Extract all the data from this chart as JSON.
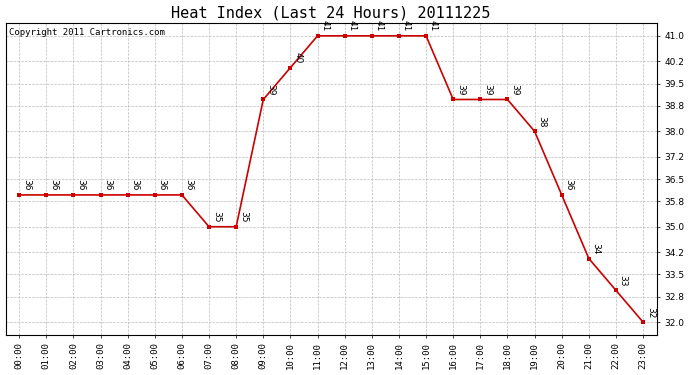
{
  "title": "Heat Index (Last 24 Hours) 20111225",
  "copyright": "Copyright 2011 Cartronics.com",
  "x_labels": [
    "00:00",
    "01:00",
    "02:00",
    "03:00",
    "04:00",
    "05:00",
    "06:00",
    "07:00",
    "08:00",
    "09:00",
    "10:00",
    "11:00",
    "12:00",
    "13:00",
    "14:00",
    "15:00",
    "16:00",
    "17:00",
    "18:00",
    "19:00",
    "20:00",
    "21:00",
    "22:00",
    "23:00"
  ],
  "x_values": [
    0,
    1,
    2,
    3,
    4,
    5,
    6,
    7,
    8,
    9,
    10,
    11,
    12,
    13,
    14,
    15,
    16,
    17,
    18,
    19,
    20,
    21,
    22,
    23
  ],
  "y_values": [
    36,
    36,
    36,
    36,
    36,
    36,
    36,
    35,
    35,
    39,
    40,
    41,
    41,
    41,
    41,
    41,
    39,
    39,
    39,
    38,
    36,
    34,
    33,
    32
  ],
  "ylim_min": 31.6,
  "ylim_max": 41.4,
  "y_ticks": [
    32.0,
    32.8,
    33.5,
    34.2,
    35.0,
    35.8,
    36.5,
    37.2,
    38.0,
    38.8,
    39.5,
    40.2,
    41.0
  ],
  "line_color": "#cc0000",
  "marker_color": "#cc0000",
  "bg_color": "#ffffff",
  "plot_bg_color": "#ffffff",
  "grid_color": "#bbbbbb",
  "title_fontsize": 11,
  "label_fontsize": 6.5,
  "annotation_fontsize": 6.5,
  "copyright_fontsize": 6.5
}
